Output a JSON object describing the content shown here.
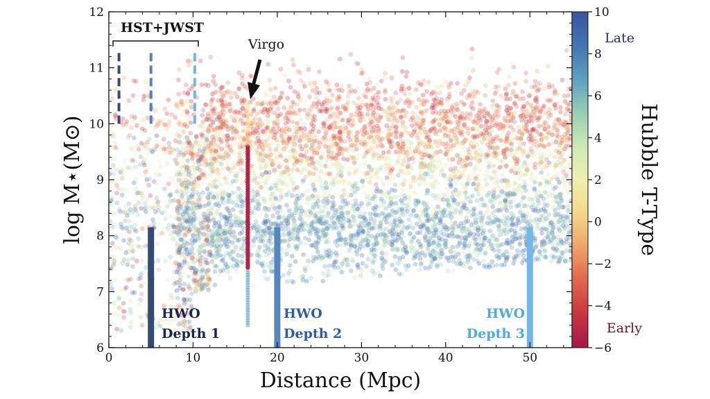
{
  "chart_data": {
    "type": "scatter",
    "xlabel": "Distance (Mpc)",
    "ylabel": "log M⋆(M⊙)",
    "xlim": [
      0,
      55
    ],
    "ylim": [
      6,
      12
    ],
    "xticks": [
      "0",
      "10",
      "20",
      "30",
      "40",
      "50"
    ],
    "yticks": [
      "6",
      "7",
      "8",
      "9",
      "10",
      "11",
      "12"
    ],
    "grid": false,
    "colorbar": {
      "label": "Hubble T-Type",
      "range": [
        -6,
        10
      ],
      "ticks": [
        "10",
        "8",
        "6",
        "4",
        "2",
        "0",
        "−2",
        "−4",
        "−6"
      ],
      "top_label": "Late",
      "bottom_label": "Early",
      "colors": [
        "#a3174a",
        "#c9363f",
        "#e0664d",
        "#eda46a",
        "#f5d68c",
        "#f1eeb0",
        "#cfe8b7",
        "#97ceb4",
        "#5ea0c0",
        "#4474b0",
        "#3b55a0"
      ]
    },
    "annotations": {
      "hst_jwst": "HST+JWST",
      "virgo": "Virgo",
      "hwo1": [
        "HWO",
        "Depth 1"
      ],
      "hwo2": [
        "HWO",
        "Depth 2"
      ],
      "hwo3": [
        "HWO",
        "Depth 3"
      ]
    },
    "hst_dashed_lines": [
      {
        "x": 1.2,
        "y0": 10.0,
        "y1": 11.3,
        "color": "#3a4a78"
      },
      {
        "x": 5.0,
        "y0": 10.0,
        "y1": 11.3,
        "color": "#5a80b8"
      },
      {
        "x": 10.2,
        "y0": 10.0,
        "y1": 11.3,
        "color": "#74b6e6"
      }
    ],
    "hwo_bars": [
      {
        "x": 5.0,
        "y0": 6.0,
        "y1": 8.15,
        "color": "#344a72"
      },
      {
        "x": 20.0,
        "y0": 6.0,
        "y1": 8.15,
        "color": "#5586c0"
      },
      {
        "x": 50.0,
        "y0": 6.0,
        "y1": 8.15,
        "color": "#74b6e6"
      }
    ],
    "virgo_column": {
      "x": 16.5,
      "y0": 6.4,
      "y1": 10.4
    },
    "points": {
      "count": 6000,
      "late_type_mass_range": [
        7.2,
        9.0
      ],
      "early_type_mass_range": [
        9.2,
        11.0
      ],
      "distance_range": [
        0,
        55
      ]
    }
  }
}
